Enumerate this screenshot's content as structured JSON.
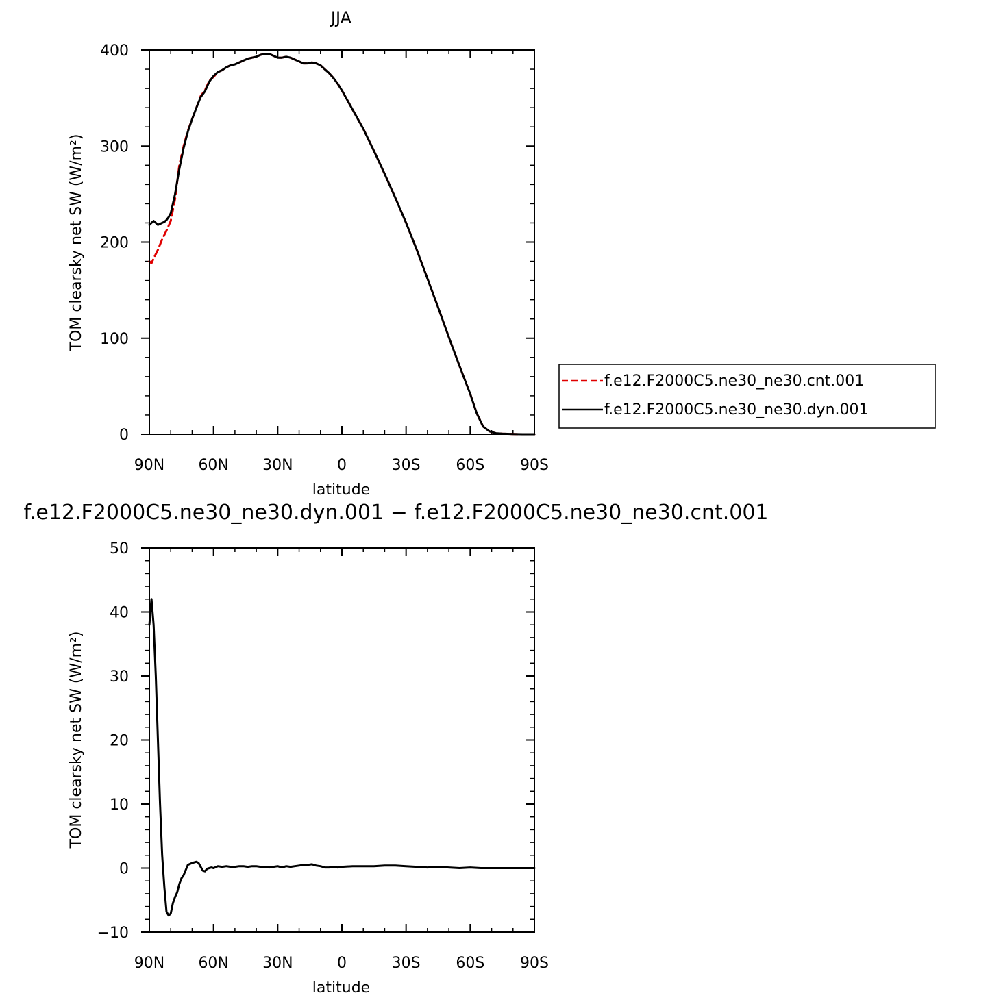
{
  "chart_data": [
    {
      "type": "line",
      "title": "JJA",
      "xlabel": "latitude",
      "ylabel": "TOM clearsky net SW (W/m²)",
      "xlim": [
        90,
        -90
      ],
      "ylim": [
        0,
        400
      ],
      "x_ticks": [
        90,
        60,
        30,
        0,
        -30,
        -60,
        -90
      ],
      "x_tick_labels": [
        "90N",
        "60N",
        "30N",
        "0",
        "30S",
        "60S",
        "90S"
      ],
      "y_ticks": [
        0,
        100,
        200,
        300,
        400
      ],
      "y_tick_labels": [
        "0",
        "100",
        "200",
        "300",
        "400"
      ],
      "legend": {
        "position": "right",
        "entries": [
          "f.e12.F2000C5.ne30_ne30.cnt.001",
          "f.e12.F2000C5.ne30_ne30.dyn.001"
        ]
      },
      "series": [
        {
          "name": "f.e12.F2000C5.ne30_ne30.cnt.001",
          "color": "#e00000",
          "dash": "dashed",
          "x": [
            90,
            89,
            88,
            86,
            84,
            82,
            80,
            78,
            76,
            74,
            72,
            70,
            68,
            66,
            64,
            62,
            60,
            58,
            56,
            54,
            52,
            50,
            48,
            46,
            44,
            42,
            40,
            38,
            36,
            34,
            32,
            30,
            28,
            26,
            24,
            22,
            20,
            18,
            16,
            14,
            12,
            10,
            8,
            6,
            4,
            2,
            0,
            -5,
            -10,
            -15,
            -20,
            -25,
            -30,
            -35,
            -40,
            -45,
            -50,
            -55,
            -60,
            -63,
            -66,
            -69,
            -72,
            -75,
            -80,
            -85,
            -90
          ],
          "values": [
            180,
            178,
            183,
            192,
            203,
            212,
            222,
            245,
            280,
            300,
            316,
            328,
            340,
            352,
            358,
            368,
            372,
            377,
            379,
            382,
            384,
            385,
            387,
            389,
            391,
            392,
            393,
            395,
            396,
            396,
            394,
            392,
            392,
            393,
            392,
            390,
            388,
            386,
            386,
            387,
            386,
            384,
            380,
            376,
            371,
            365,
            358,
            338,
            318,
            295,
            271,
            246,
            220,
            192,
            162,
            132,
            101,
            71,
            42,
            22,
            8,
            3,
            1,
            0.5,
            0.2,
            0,
            0
          ]
        },
        {
          "name": "f.e12.F2000C5.ne30_ne30.dyn.001",
          "color": "#000000",
          "dash": "solid",
          "x": [
            90,
            89,
            88,
            87,
            86,
            85,
            84,
            83,
            82,
            81,
            80,
            78,
            76,
            74,
            72,
            70,
            68,
            66,
            64,
            62,
            60,
            58,
            56,
            54,
            52,
            50,
            48,
            46,
            44,
            42,
            40,
            38,
            36,
            34,
            32,
            30,
            28,
            26,
            24,
            22,
            20,
            18,
            16,
            14,
            12,
            10,
            8,
            6,
            4,
            2,
            0,
            -5,
            -10,
            -15,
            -20,
            -25,
            -30,
            -35,
            -40,
            -45,
            -50,
            -55,
            -60,
            -63,
            -66,
            -69,
            -72,
            -75,
            -80,
            -85,
            -90
          ],
          "values": [
            218,
            220,
            222,
            220,
            218,
            219,
            220,
            221,
            223,
            226,
            230,
            250,
            276,
            298,
            315,
            328,
            340,
            351,
            357,
            367,
            373,
            377,
            379,
            382,
            384,
            385,
            387,
            389,
            391,
            392,
            393,
            395,
            396,
            396,
            394,
            392,
            392,
            393,
            392,
            390,
            388,
            386,
            386,
            387,
            386,
            384,
            380,
            376,
            371,
            365,
            358,
            338,
            318,
            295,
            271,
            246,
            220,
            192,
            162,
            132,
            101,
            71,
            42,
            22,
            8,
            3,
            1,
            0.5,
            0.2,
            0,
            0
          ]
        }
      ]
    },
    {
      "type": "line",
      "title": "f.e12.F2000C5.ne30_ne30.dyn.001 − f.e12.F2000C5.ne30_ne30.cnt.001",
      "xlabel": "latitude",
      "ylabel": "TOM clearsky net SW (W/m²)",
      "xlim": [
        90,
        -90
      ],
      "ylim": [
        -10,
        50
      ],
      "x_ticks": [
        90,
        60,
        30,
        0,
        -30,
        -60,
        -90
      ],
      "x_tick_labels": [
        "90N",
        "60N",
        "30N",
        "0",
        "30S",
        "60S",
        "90S"
      ],
      "y_ticks": [
        -10,
        0,
        10,
        20,
        30,
        40,
        50
      ],
      "y_tick_labels": [
        "−10",
        "0",
        "10",
        "20",
        "30",
        "40",
        "50"
      ],
      "series": [
        {
          "color": "#000000",
          "dash": "solid",
          "x": [
            90,
            89,
            88,
            87,
            86,
            85,
            84,
            83,
            82,
            81,
            80,
            79,
            78,
            77,
            76,
            75,
            74,
            72,
            70,
            68,
            67,
            66,
            65,
            64,
            63,
            62,
            61,
            60,
            58,
            56,
            54,
            52,
            50,
            48,
            46,
            44,
            42,
            40,
            38,
            36,
            34,
            32,
            30,
            28,
            26,
            24,
            22,
            20,
            18,
            16,
            14,
            12,
            10,
            8,
            6,
            4,
            2,
            0,
            -5,
            -10,
            -15,
            -20,
            -25,
            -30,
            -35,
            -40,
            -45,
            -50,
            -55,
            -60,
            -65,
            -70,
            -75,
            -80,
            -85,
            -90
          ],
          "values": [
            38,
            42,
            38,
            30,
            20,
            10,
            2,
            -3,
            -6.8,
            -7.4,
            -7.1,
            -5.5,
            -4.5,
            -3.8,
            -2.5,
            -1.6,
            -1.1,
            0.5,
            0.8,
            1.0,
            0.8,
            0.2,
            -0.4,
            -0.5,
            -0.1,
            0.0,
            0.1,
            0.0,
            0.3,
            0.2,
            0.3,
            0.2,
            0.2,
            0.3,
            0.3,
            0.2,
            0.3,
            0.3,
            0.2,
            0.2,
            0.1,
            0.2,
            0.3,
            0.1,
            0.3,
            0.2,
            0.3,
            0.4,
            0.5,
            0.5,
            0.6,
            0.4,
            0.3,
            0.1,
            0.1,
            0.2,
            0.1,
            0.2,
            0.3,
            0.3,
            0.3,
            0.4,
            0.4,
            0.3,
            0.2,
            0.1,
            0.2,
            0.1,
            0.0,
            0.1,
            0.0,
            0.0,
            0.0,
            0.0,
            0.0,
            0.0
          ]
        }
      ]
    }
  ]
}
